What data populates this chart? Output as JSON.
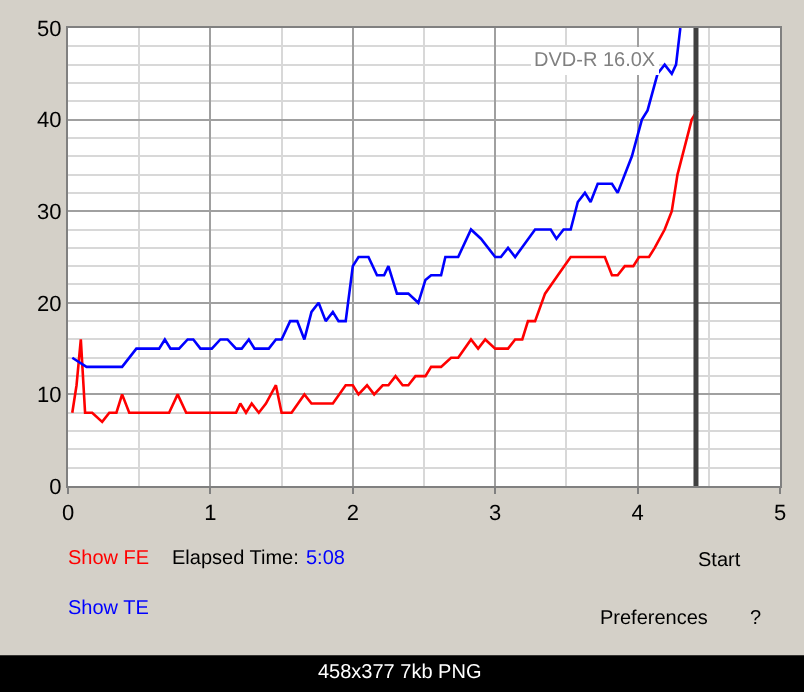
{
  "chart_data": {
    "type": "line",
    "xlim": [
      0,
      5
    ],
    "xticks": [
      0,
      1,
      2,
      3,
      4,
      5
    ],
    "ylim": [
      0,
      50
    ],
    "yticks": [
      0,
      10,
      20,
      30,
      40,
      50
    ],
    "grid": true,
    "marker": "none",
    "line_style": "solid",
    "series": [
      {
        "color": "#ff0000",
        "x": [
          0.03,
          0.06,
          0.09,
          0.12,
          0.17,
          0.24,
          0.29,
          0.34,
          0.38,
          0.43,
          0.71,
          0.77,
          0.83,
          1.18,
          1.21,
          1.25,
          1.29,
          1.34,
          1.39,
          1.46,
          1.5,
          1.57,
          1.66,
          1.71,
          1.86,
          1.95,
          2.0,
          2.04,
          2.1,
          2.15,
          2.21,
          2.25,
          2.3,
          2.35,
          2.39,
          2.44,
          2.51,
          2.55,
          2.62,
          2.69,
          2.74,
          2.83,
          2.88,
          2.93,
          3.0,
          3.09,
          3.14,
          3.19,
          3.23,
          3.28,
          3.35,
          3.44,
          3.53,
          3.58,
          3.77,
          3.82,
          3.86,
          3.91,
          3.97,
          4.01,
          4.08,
          4.12,
          4.19,
          4.24,
          4.28,
          4.33,
          4.38,
          4.42
        ],
        "values": [
          8,
          11,
          16,
          8,
          8,
          7,
          8,
          8,
          10,
          8,
          8,
          10,
          8,
          8,
          9,
          8,
          9,
          8,
          9,
          11,
          8,
          8,
          10,
          9,
          9,
          11,
          11,
          10,
          11,
          10,
          11,
          11,
          12,
          11,
          11,
          12,
          12,
          13,
          13,
          14,
          14,
          16,
          15,
          16,
          15,
          15,
          16,
          16,
          18,
          18,
          21,
          23,
          25,
          25,
          25,
          23,
          23,
          24,
          24,
          25,
          25,
          26,
          28,
          30,
          34,
          37,
          40,
          41
        ]
      },
      {
        "color": "#0000ff",
        "x": [
          0.03,
          0.13,
          0.38,
          0.48,
          0.64,
          0.68,
          0.72,
          0.78,
          0.84,
          0.88,
          0.93,
          1.01,
          1.07,
          1.12,
          1.18,
          1.22,
          1.27,
          1.31,
          1.41,
          1.46,
          1.5,
          1.56,
          1.61,
          1.66,
          1.71,
          1.76,
          1.81,
          1.86,
          1.9,
          1.95,
          2.0,
          2.04,
          2.11,
          2.17,
          2.22,
          2.25,
          2.31,
          2.39,
          2.46,
          2.51,
          2.55,
          2.62,
          2.65,
          2.74,
          2.83,
          2.9,
          3.0,
          3.04,
          3.09,
          3.14,
          3.28,
          3.39,
          3.43,
          3.48,
          3.53,
          3.58,
          3.63,
          3.67,
          3.72,
          3.82,
          3.86,
          3.96,
          4.03,
          4.07,
          4.14,
          4.19,
          4.24,
          4.27,
          4.3
        ],
        "values": [
          14,
          13,
          13,
          15,
          15,
          16,
          15,
          15,
          16,
          16,
          15,
          15,
          16,
          16,
          15,
          15,
          16,
          15,
          15,
          16,
          16,
          18,
          18,
          16,
          19,
          20,
          18,
          19,
          18,
          18,
          24,
          25,
          25,
          23,
          23,
          24,
          21,
          21,
          20,
          22.5,
          23,
          23,
          25,
          25,
          28,
          27,
          25,
          25,
          26,
          25,
          28,
          28,
          27,
          28,
          28,
          31,
          32,
          31,
          33,
          33,
          32,
          36,
          40,
          41,
          45,
          46,
          45,
          46,
          50
        ]
      }
    ],
    "ref_lines": [
      {
        "axis": "x",
        "value": 4.41,
        "color": "#404040"
      }
    ],
    "annotations": [
      "DVD-R 16.0X",
      "Show FE",
      "Show TE",
      "Elapsed Time:",
      "5:08",
      "Start",
      "Preferences",
      "?",
      "458x377 7kb PNG"
    ]
  }
}
